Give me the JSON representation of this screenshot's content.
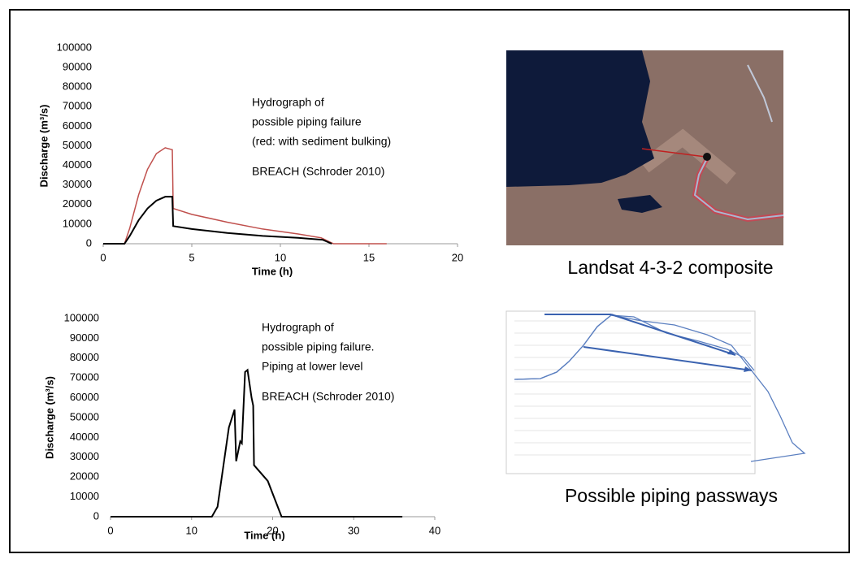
{
  "chart_data": [
    {
      "type": "line",
      "xlabel": "Time (h)",
      "ylabel": "Discharge (m³/s)",
      "annotations": [
        "Hydrograph of",
        "possible piping failure",
        "(red: with sediment bulking)",
        "BREACH (Schroder 2010)"
      ],
      "xlim": [
        0,
        20
      ],
      "xticks": [
        0,
        5,
        10,
        15,
        20
      ],
      "ylim": [
        0,
        100000
      ],
      "yticks": [
        0,
        10000,
        20000,
        30000,
        40000,
        50000,
        60000,
        70000,
        80000,
        90000,
        100000
      ],
      "series": [
        {
          "color": "#c0504d",
          "x": [
            0,
            1.2,
            1.5,
            2,
            2.5,
            3,
            3.5,
            3.9,
            3.95,
            5,
            7,
            9,
            11,
            12.3,
            13,
            16
          ],
          "values": [
            0,
            0,
            8000,
            25000,
            38000,
            46000,
            49000,
            48000,
            18000,
            15000,
            11000,
            7500,
            5000,
            3000,
            0,
            0
          ]
        },
        {
          "color": "#000000",
          "x": [
            0,
            1.2,
            1.5,
            2,
            2.5,
            3,
            3.5,
            3.9,
            3.95,
            5,
            7,
            9,
            11,
            12.4,
            12.9
          ],
          "values": [
            0,
            0,
            4000,
            12000,
            18000,
            22000,
            24000,
            24000,
            9000,
            7500,
            5500,
            4000,
            3000,
            2000,
            0
          ]
        }
      ]
    },
    {
      "type": "line",
      "xlabel": "Time (h)",
      "ylabel": "Discharge (m³/s)",
      "annotations": [
        "Hydrograph of",
        "possible piping failure.",
        "Piping at lower level",
        "BREACH (Schroder 2010)"
      ],
      "xlim": [
        0,
        40
      ],
      "xticks": [
        0,
        10,
        20,
        30,
        40
      ],
      "ylim": [
        0,
        100000
      ],
      "yticks": [
        0,
        10000,
        20000,
        30000,
        40000,
        50000,
        60000,
        70000,
        80000,
        90000,
        100000
      ],
      "series": [
        {
          "color": "#000000",
          "x": [
            0,
            12.5,
            13.2,
            13.9,
            14.6,
            15.3,
            15.5,
            16,
            16.2,
            16.6,
            16.9,
            17.4,
            17.6,
            17.7,
            19.4,
            21.1,
            36
          ],
          "values": [
            0,
            0,
            5000,
            25000,
            45000,
            54000,
            28000,
            38000,
            37000,
            73000,
            74000,
            60000,
            56000,
            26000,
            18000,
            0,
            0
          ]
        }
      ]
    }
  ],
  "captions": [
    "Landsat 4-3-2 composite",
    "Possible piping passways"
  ]
}
